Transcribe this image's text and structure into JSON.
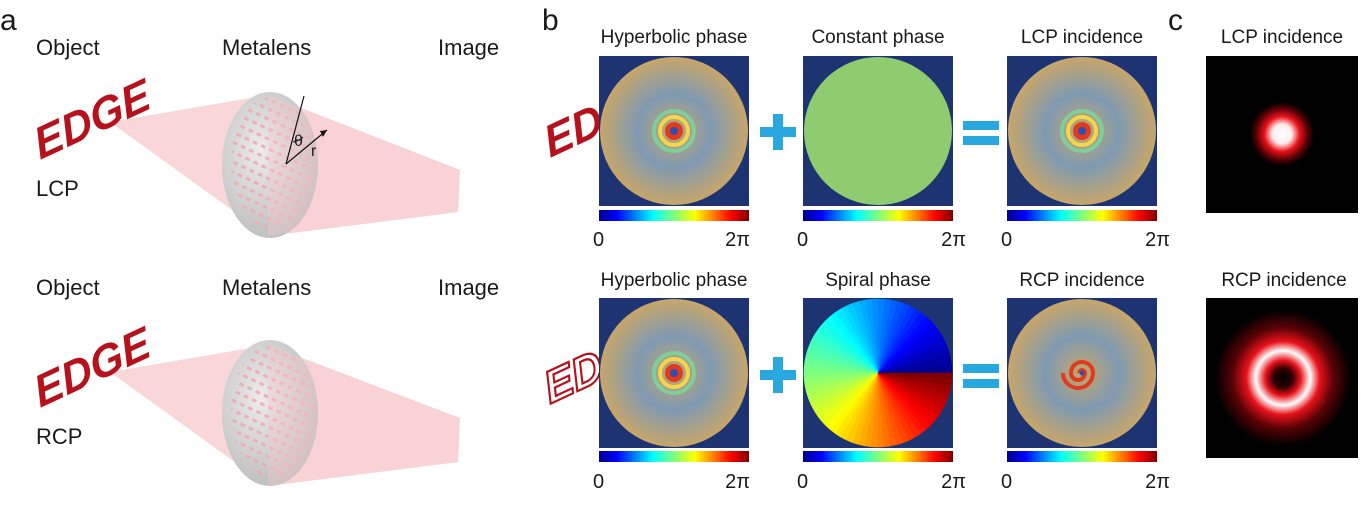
{
  "panels": {
    "a": {
      "letter": "a",
      "rows": [
        {
          "object_label": "Object",
          "lens_label": "Metalens",
          "image_label": "Image",
          "polarization": "LCP",
          "object_text": "EDGE",
          "image_text": "EDGE",
          "theta_label": "θ",
          "r_label": "r"
        },
        {
          "object_label": "Object",
          "lens_label": "Metalens",
          "image_label": "Image",
          "polarization": "RCP",
          "object_text": "EDGE",
          "image_text": "EDGE"
        }
      ]
    },
    "b": {
      "letter": "b",
      "rows": [
        {
          "left_title": "Hyperbolic phase",
          "mid_title": "Constant phase",
          "right_title": "LCP incidence"
        },
        {
          "left_title": "Hyperbolic phase",
          "mid_title": "Spiral phase",
          "right_title": "RCP incidence"
        }
      ],
      "colorbar": {
        "min_label": "0",
        "max_label": "2π"
      },
      "plus_symbol": "+",
      "equals_symbol": "="
    },
    "c": {
      "letter": "c",
      "titles": [
        "LCP incidence",
        "RCP incidence"
      ]
    }
  },
  "colors": {
    "edge_red": "#b5121b",
    "operator_blue": "#29a8e0",
    "map_background": "#1e3472",
    "constant_phase": "#8fcc6f",
    "beam_cone": "#f7c9cc"
  }
}
